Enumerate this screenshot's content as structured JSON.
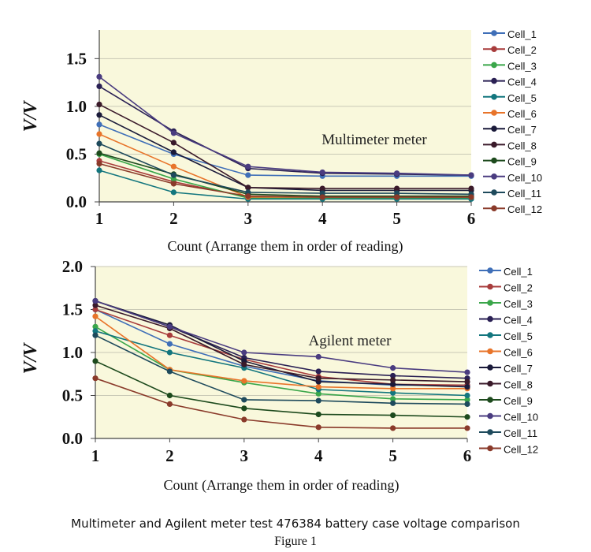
{
  "chart_data": [
    {
      "type": "line",
      "annotation": "Multimeter meter",
      "xlabel": "Count (Arrange them in order of reading)",
      "ylabel": "V/V",
      "x": [
        1,
        2,
        3,
        4,
        5,
        6
      ],
      "xlim": [
        1,
        6
      ],
      "ylim": [
        0,
        1.8
      ],
      "yticks": [
        0.0,
        0.5,
        1.0,
        1.5
      ],
      "ytick_labels": [
        "0.0",
        "0.5",
        "1.0",
        "1.5"
      ],
      "grid": true,
      "series": [
        {
          "name": "Cell_1",
          "color": "#3f6fb8",
          "values": [
            0.81,
            0.5,
            0.28,
            0.27,
            0.27,
            0.27
          ]
        },
        {
          "name": "Cell_2",
          "color": "#a83c3c",
          "values": [
            0.43,
            0.21,
            0.05,
            0.05,
            0.05,
            0.05
          ]
        },
        {
          "name": "Cell_3",
          "color": "#3aa64a",
          "values": [
            0.5,
            0.24,
            0.04,
            0.04,
            0.04,
            0.04
          ]
        },
        {
          "name": "Cell_4",
          "color": "#2a2054",
          "values": [
            1.21,
            0.74,
            0.35,
            0.3,
            0.29,
            0.28
          ]
        },
        {
          "name": "Cell_5",
          "color": "#13767e",
          "values": [
            0.33,
            0.1,
            0.03,
            0.03,
            0.03,
            0.03
          ]
        },
        {
          "name": "Cell_6",
          "color": "#e8742a",
          "values": [
            0.71,
            0.37,
            0.05,
            0.05,
            0.05,
            0.05
          ]
        },
        {
          "name": "Cell_7",
          "color": "#1a1a3a",
          "values": [
            0.91,
            0.52,
            0.15,
            0.12,
            0.12,
            0.12
          ]
        },
        {
          "name": "Cell_8",
          "color": "#3a1a2a",
          "values": [
            1.02,
            0.62,
            0.15,
            0.14,
            0.14,
            0.14
          ]
        },
        {
          "name": "Cell_9",
          "color": "#1d4a1d",
          "values": [
            0.51,
            0.29,
            0.08,
            0.06,
            0.06,
            0.06
          ]
        },
        {
          "name": "Cell_10",
          "color": "#4a3c80",
          "values": [
            1.31,
            0.72,
            0.37,
            0.31,
            0.3,
            0.28
          ]
        },
        {
          "name": "Cell_11",
          "color": "#1e4a5c",
          "values": [
            0.61,
            0.28,
            0.1,
            0.09,
            0.09,
            0.08
          ]
        },
        {
          "name": "Cell_12",
          "color": "#8a3a2a",
          "values": [
            0.4,
            0.19,
            0.06,
            0.05,
            0.05,
            0.05
          ]
        }
      ]
    },
    {
      "type": "line",
      "annotation": "Agilent meter",
      "xlabel": "Count (Arrange them in order of reading)",
      "ylabel": "V/V",
      "x": [
        1,
        2,
        3,
        4,
        5,
        6
      ],
      "xlim": [
        1,
        6
      ],
      "ylim": [
        0,
        2.0
      ],
      "yticks": [
        0.0,
        0.5,
        1.0,
        1.5,
        2.0
      ],
      "ytick_labels": [
        "0.0",
        "0.5",
        "1.0",
        "1.5",
        "2.0"
      ],
      "grid": true,
      "series": [
        {
          "name": "Cell_1",
          "color": "#3f6fb8",
          "values": [
            1.5,
            1.1,
            0.84,
            0.67,
            0.62,
            0.62
          ]
        },
        {
          "name": "Cell_2",
          "color": "#a83c3c",
          "values": [
            1.5,
            1.2,
            0.92,
            0.72,
            0.63,
            0.62
          ]
        },
        {
          "name": "Cell_3",
          "color": "#3aa64a",
          "values": [
            1.3,
            0.8,
            0.65,
            0.52,
            0.46,
            0.45
          ]
        },
        {
          "name": "Cell_4",
          "color": "#2a2054",
          "values": [
            1.6,
            1.3,
            0.94,
            0.78,
            0.73,
            0.7
          ]
        },
        {
          "name": "Cell_5",
          "color": "#13767e",
          "values": [
            1.25,
            1.0,
            0.82,
            0.57,
            0.53,
            0.5
          ]
        },
        {
          "name": "Cell_6",
          "color": "#e8742a",
          "values": [
            1.42,
            0.8,
            0.67,
            0.6,
            0.58,
            0.58
          ]
        },
        {
          "name": "Cell_7",
          "color": "#1a1a3a",
          "values": [
            1.6,
            1.32,
            0.9,
            0.66,
            0.63,
            0.6
          ]
        },
        {
          "name": "Cell_8",
          "color": "#3a1a2a",
          "values": [
            1.55,
            1.28,
            0.86,
            0.7,
            0.68,
            0.66
          ]
        },
        {
          "name": "Cell_9",
          "color": "#1d4a1d",
          "values": [
            0.9,
            0.5,
            0.35,
            0.28,
            0.27,
            0.25
          ]
        },
        {
          "name": "Cell_10",
          "color": "#4a3c80",
          "values": [
            1.6,
            1.3,
            1.0,
            0.95,
            0.82,
            0.77
          ]
        },
        {
          "name": "Cell_11",
          "color": "#1e4a5c",
          "values": [
            1.2,
            0.78,
            0.45,
            0.44,
            0.41,
            0.4
          ]
        },
        {
          "name": "Cell_12",
          "color": "#8a3a2a",
          "values": [
            0.7,
            0.4,
            0.22,
            0.13,
            0.12,
            0.12
          ]
        }
      ]
    }
  ],
  "caption": "Multimeter and Agilent meter test 476384 battery case voltage comparison",
  "figure_label": "Figure 1"
}
